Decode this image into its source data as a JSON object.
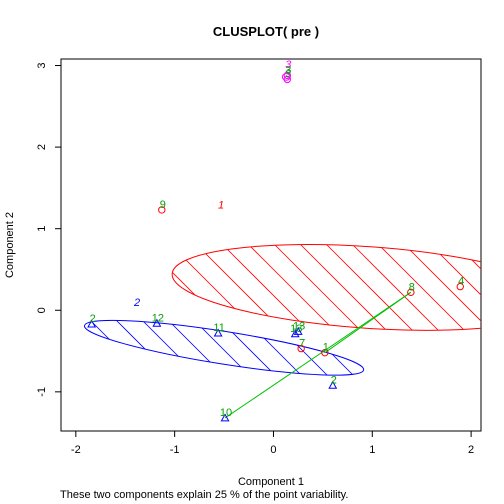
{
  "chart_data": {
    "type": "scatter",
    "title": "CLUSPLOT( pre )",
    "xlabel": "Component 1",
    "ylabel": "Component 2",
    "caption": "These two components explain 25 % of the point variability.",
    "xlim": [
      -2.15,
      2.1
    ],
    "ylim": [
      -1.48,
      3.08
    ],
    "x_ticks": [
      -2,
      -1,
      0,
      1,
      2
    ],
    "x_tick_labels": [
      "-2",
      "-1",
      "0",
      "1",
      "2"
    ],
    "y_ticks": [
      -1,
      0,
      1,
      2,
      3
    ],
    "y_tick_labels": [
      "-1",
      "0",
      "1",
      "2",
      "3"
    ],
    "grid": false,
    "legend": "none",
    "clusters": [
      {
        "id": 1,
        "label": "1",
        "color": "#ff0000",
        "shade": true,
        "cx": 0.95,
        "cy": 0.28,
        "rx": 1.98,
        "ry": 0.5,
        "angle_deg": -4,
        "label_x": -0.53,
        "label_y": 1.25
      },
      {
        "id": 2,
        "label": "2",
        "color": "#0000ff",
        "shade": true,
        "cx": -0.5,
        "cy": -0.46,
        "rx": 1.43,
        "ry": 0.2,
        "angle_deg": -9,
        "label_x": -1.38,
        "label_y": 0.05
      },
      {
        "id": 3,
        "label": "3",
        "color": "#ff00ff",
        "shade": false,
        "cx": 0.13,
        "cy": 2.86,
        "rx": 0.04,
        "ry": 0.04,
        "angle_deg": 0,
        "label_x": 0.15,
        "label_y": 2.97
      }
    ],
    "points": [
      {
        "label": "1",
        "x": 0.52,
        "y": -0.52,
        "color": "#ff0000",
        "marker": "circle"
      },
      {
        "label": "2",
        "x": -1.84,
        "y": -0.17,
        "color": "#0000ff",
        "marker": "triangle"
      },
      {
        "label": "2",
        "x": 0.6,
        "y": -0.92,
        "color": "#0000ff",
        "marker": "triangle"
      },
      {
        "label": "3",
        "x": 0.14,
        "y": 2.83,
        "color": "#ff00ff",
        "marker": "circle"
      },
      {
        "label": "3",
        "x": 0.14,
        "y": 2.88,
        "color": "#ff00ff",
        "marker": "circle"
      },
      {
        "label": "4",
        "x": 1.89,
        "y": 0.29,
        "color": "#ff0000",
        "marker": "circle"
      },
      {
        "label": "7",
        "x": 0.28,
        "y": -0.47,
        "color": "#ff0000",
        "marker": "circle"
      },
      {
        "label": "8",
        "x": 1.39,
        "y": 0.22,
        "color": "#ff0000",
        "marker": "circle"
      },
      {
        "label": "9",
        "x": -1.13,
        "y": 1.23,
        "color": "#ff0000",
        "marker": "circle"
      },
      {
        "label": "10",
        "x": -0.49,
        "y": -1.32,
        "color": "#0000ff",
        "marker": "triangle"
      },
      {
        "label": "11",
        "x": -0.56,
        "y": -0.28,
        "color": "#0000ff",
        "marker": "triangle"
      },
      {
        "label": "12",
        "x": -1.18,
        "y": -0.16,
        "color": "#0000ff",
        "marker": "triangle"
      },
      {
        "label": "13",
        "x": 0.22,
        "y": -0.29,
        "color": "#0000ff",
        "marker": "triangle"
      },
      {
        "label": "13",
        "x": 0.25,
        "y": -0.26,
        "color": "#0000ff",
        "marker": "triangle"
      }
    ],
    "label_color": "#00a000",
    "line_color": "#00c000",
    "segments": [
      {
        "x1": -0.49,
        "y1": -1.32,
        "x2": 1.39,
        "y2": 0.22
      },
      {
        "x1": 0.52,
        "y1": -0.52,
        "x2": 1.39,
        "y2": 0.22
      }
    ]
  }
}
